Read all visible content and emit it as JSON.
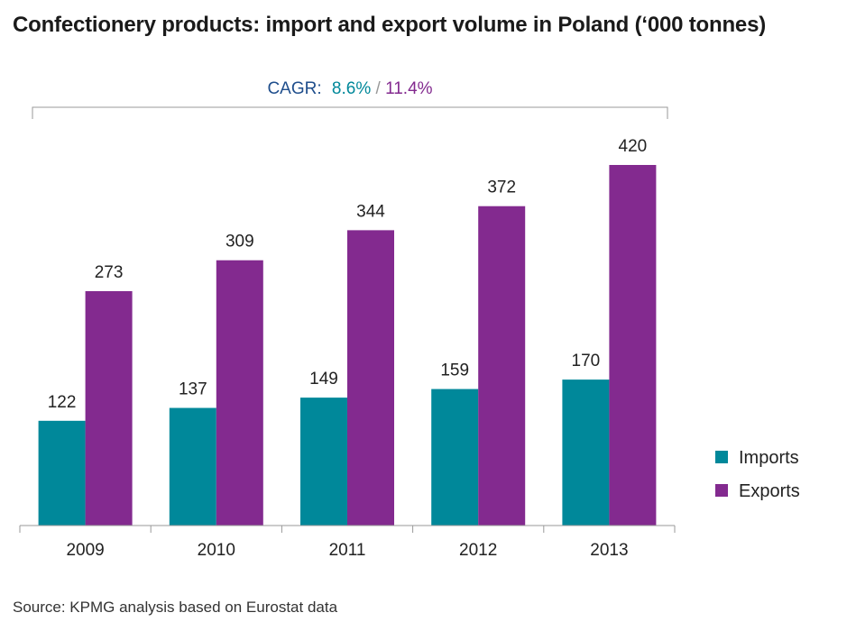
{
  "title": "Confectionery products: import and export volume in Poland (‘000 tonnes)",
  "source": "Source: KPMG analysis based on Eurostat data",
  "cagr": {
    "label": "CAGR:",
    "imports": "8.6%",
    "separator": "/",
    "exports": "11.4%"
  },
  "colors": {
    "imports": "#00889a",
    "exports": "#832a8f",
    "cagr_label": "#1f4e8c",
    "axis": "#999999",
    "text": "#222222"
  },
  "chart_data": {
    "type": "bar",
    "title": "Confectionery products: import and export volume in Poland (‘000 tonnes)",
    "categories": [
      "2009",
      "2010",
      "2011",
      "2012",
      "2013"
    ],
    "series": [
      {
        "name": "Imports",
        "values": [
          122,
          137,
          149,
          159,
          170
        ]
      },
      {
        "name": "Exports",
        "values": [
          273,
          309,
          344,
          372,
          420
        ]
      }
    ],
    "data_labels": {
      "Imports": [
        "122",
        "137",
        "149",
        "159",
        "170"
      ],
      "Exports": [
        "273",
        "309",
        "344",
        "372",
        "420"
      ]
    },
    "xlabel": "",
    "ylabel": "",
    "ylim": [
      0,
      420
    ],
    "grid": false,
    "legend": "right"
  }
}
